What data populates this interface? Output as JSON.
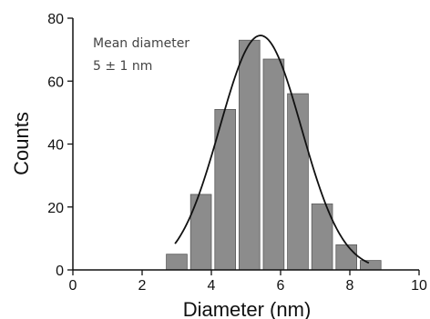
{
  "chart_data": {
    "type": "bar",
    "xlabel": "Diameter (nm)",
    "ylabel": "Counts",
    "xlim": [
      0,
      10
    ],
    "ylim": [
      0,
      80
    ],
    "x_ticks": [
      0,
      2,
      4,
      6,
      8,
      10
    ],
    "y_ticks": [
      0,
      20,
      40,
      60,
      80
    ],
    "bin_width": 0.6,
    "bins": [
      {
        "x": 3.0,
        "count": 5
      },
      {
        "x": 3.7,
        "count": 24
      },
      {
        "x": 4.4,
        "count": 51
      },
      {
        "x": 5.1,
        "count": 73
      },
      {
        "x": 5.8,
        "count": 67
      },
      {
        "x": 6.5,
        "count": 56
      },
      {
        "x": 7.2,
        "count": 21
      },
      {
        "x": 7.9,
        "count": 8
      },
      {
        "x": 8.6,
        "count": 3
      }
    ],
    "fit": {
      "type": "gaussian",
      "center": 5.42,
      "sigma": 1.18,
      "amplitude": 74.5,
      "x_range": [
        2.95,
        8.55
      ]
    },
    "annotation": {
      "line1": "Mean diameter",
      "line2": "5 ± 1 nm"
    },
    "grid": false,
    "legend": "none"
  }
}
